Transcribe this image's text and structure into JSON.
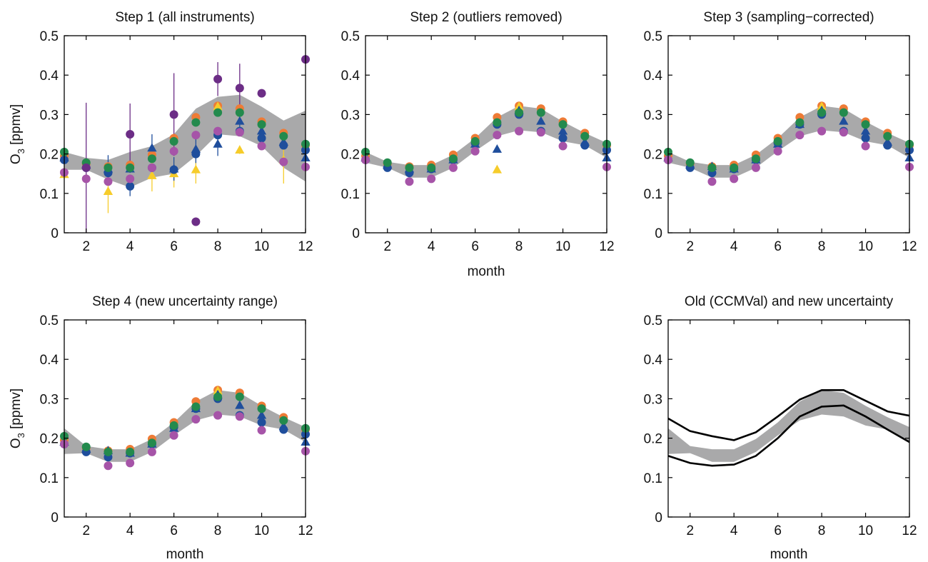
{
  "colors": {
    "band": "#a9a9aa",
    "orange": "#ee7b36",
    "yellow": "#f6cc2a",
    "green": "#238a4d",
    "blue": "#1f4e9c",
    "purple": "#6c2d86",
    "magenta": "#a654a8",
    "line": "#000000"
  },
  "chart_data": [
    {
      "id": "step1",
      "type": "scatter",
      "title": "Step 1 (all instruments)",
      "xlabel": "",
      "ylabel": "O3 [ppmv]",
      "xlim": [
        1,
        12
      ],
      "ylim": [
        0,
        0.5
      ],
      "xticks": [
        "2",
        "4",
        "6",
        "8",
        "10",
        "12"
      ],
      "yticks": [
        "0",
        "0.1",
        "0.2",
        "0.3",
        "0.4",
        "0.5"
      ],
      "band": {
        "x": [
          1,
          2,
          3,
          4,
          5,
          6,
          7,
          8,
          9,
          10,
          11,
          12
        ],
        "upper": [
          0.205,
          0.19,
          0.185,
          0.205,
          0.22,
          0.25,
          0.315,
          0.345,
          0.35,
          0.32,
          0.285,
          0.31
        ],
        "lower": [
          0.16,
          0.16,
          0.135,
          0.115,
          0.14,
          0.15,
          0.195,
          0.25,
          0.245,
          0.22,
          0.165,
          0.13
        ]
      },
      "series": [
        {
          "color": "orange",
          "marker": "circle",
          "x": [
            1,
            2,
            3,
            4,
            5,
            6,
            7,
            8,
            9,
            10,
            11,
            12
          ],
          "y": [
            0.195,
            0.175,
            0.168,
            0.172,
            0.198,
            0.24,
            0.293,
            0.322,
            0.315,
            0.282,
            0.253,
            0.222
          ]
        },
        {
          "color": "yellow",
          "marker": "triangle",
          "x": [
            1,
            3,
            5,
            6,
            7,
            8,
            9,
            11
          ],
          "y": [
            0.148,
            0.105,
            0.145,
            0.15,
            0.16,
            0.32,
            0.21,
            0.185
          ],
          "err": [
            0.01,
            0.055,
            0.04,
            0.035,
            0.035,
            0.01,
            0.01,
            0.06
          ]
        },
        {
          "color": "blue",
          "marker": "triangle",
          "x": [
            1,
            2,
            3,
            4,
            5,
            6,
            7,
            8,
            9,
            10,
            11,
            12
          ],
          "y": [
            0.19,
            0.172,
            0.162,
            0.162,
            0.215,
            0.162,
            0.212,
            0.225,
            0.283,
            0.258,
            0.23,
            0.19
          ],
          "err": [
            0.01,
            0.01,
            0.035,
            0.01,
            0.035,
            0.03,
            0.035,
            0.03,
            0.02,
            0.02,
            0.01,
            0.02
          ]
        },
        {
          "color": "blue",
          "marker": "circle",
          "x": [
            1,
            2,
            3,
            4,
            5,
            6,
            7,
            8,
            9,
            10,
            11,
            12
          ],
          "y": [
            0.185,
            0.165,
            0.152,
            0.118,
            0.165,
            0.16,
            0.2,
            0.248,
            0.258,
            0.24,
            0.222,
            0.21
          ],
          "err": [
            0,
            0,
            0,
            0.025,
            0,
            0,
            0,
            0,
            0,
            0,
            0,
            0
          ]
        },
        {
          "color": "green",
          "marker": "circle",
          "x": [
            1,
            2,
            3,
            4,
            5,
            6,
            7,
            8,
            9,
            10,
            11,
            12
          ],
          "y": [
            0.205,
            0.178,
            0.165,
            0.165,
            0.188,
            0.232,
            0.28,
            0.305,
            0.305,
            0.275,
            0.245,
            0.225
          ]
        },
        {
          "color": "magenta",
          "marker": "circle",
          "x": [
            1,
            2,
            3,
            4,
            5,
            6,
            7,
            8,
            9,
            10,
            11,
            12
          ],
          "y": [
            0.153,
            0.137,
            0.13,
            0.137,
            0.165,
            0.207,
            0.248,
            0.258,
            0.255,
            0.22,
            0.18,
            0.167
          ]
        },
        {
          "color": "purple",
          "marker": "circle",
          "x": [
            2,
            4,
            6,
            7,
            8,
            9,
            10,
            12
          ],
          "y": [
            0.165,
            0.25,
            0.3,
            0.028,
            0.39,
            0.367,
            0.354,
            0.44
          ],
          "err": [
            0.165,
            0.078,
            0.105,
            0,
            0.043,
            0.062,
            0,
            0
          ]
        }
      ]
    },
    {
      "id": "step2",
      "type": "scatter",
      "title": "Step 2 (outliers removed)",
      "xlabel": "month",
      "ylabel": "",
      "xlim": [
        1,
        12
      ],
      "ylim": [
        0,
        0.5
      ],
      "xticks": [
        "2",
        "4",
        "6",
        "8",
        "10",
        "12"
      ],
      "yticks": [
        "0",
        "0.1",
        "0.2",
        "0.3",
        "0.4",
        "0.5"
      ],
      "band": {
        "x": [
          1,
          2,
          3,
          4,
          5,
          6,
          7,
          8,
          9,
          10,
          11,
          12
        ],
        "upper": [
          0.205,
          0.18,
          0.172,
          0.172,
          0.198,
          0.24,
          0.293,
          0.322,
          0.315,
          0.282,
          0.253,
          0.228
        ],
        "lower": [
          0.178,
          0.165,
          0.14,
          0.14,
          0.165,
          0.207,
          0.245,
          0.26,
          0.255,
          0.232,
          0.222,
          0.19
        ]
      },
      "series": [
        {
          "color": "orange",
          "marker": "circle",
          "x": [
            1,
            2,
            3,
            4,
            5,
            6,
            7,
            8,
            9,
            10,
            11,
            12
          ],
          "y": [
            0.195,
            0.175,
            0.168,
            0.172,
            0.198,
            0.24,
            0.293,
            0.322,
            0.315,
            0.282,
            0.253,
            0.222
          ]
        },
        {
          "color": "yellow",
          "marker": "triangle",
          "x": [
            7,
            8
          ],
          "y": [
            0.16,
            0.32
          ]
        },
        {
          "color": "blue",
          "marker": "triangle",
          "x": [
            1,
            2,
            3,
            4,
            5,
            6,
            7,
            8,
            9,
            10,
            11,
            12
          ],
          "y": [
            0.19,
            0.172,
            0.162,
            0.162,
            0.185,
            0.225,
            0.212,
            0.31,
            0.283,
            0.258,
            0.23,
            0.19
          ]
        },
        {
          "color": "blue",
          "marker": "circle",
          "x": [
            1,
            2,
            3,
            4,
            5,
            6,
            7,
            8,
            9,
            10,
            11,
            12
          ],
          "y": [
            0.185,
            0.165,
            0.152,
            0.162,
            0.185,
            0.228,
            0.275,
            0.3,
            0.258,
            0.24,
            0.222,
            0.21
          ]
        },
        {
          "color": "green",
          "marker": "circle",
          "x": [
            1,
            2,
            3,
            4,
            5,
            6,
            7,
            8,
            9,
            10,
            11,
            12
          ],
          "y": [
            0.205,
            0.178,
            0.165,
            0.165,
            0.188,
            0.232,
            0.28,
            0.305,
            0.305,
            0.275,
            0.245,
            0.225
          ]
        },
        {
          "color": "magenta",
          "marker": "circle",
          "x": [
            1,
            3,
            4,
            5,
            6,
            7,
            8,
            9,
            10,
            12
          ],
          "y": [
            0.185,
            0.13,
            0.137,
            0.165,
            0.207,
            0.248,
            0.258,
            0.255,
            0.22,
            0.167
          ]
        }
      ]
    },
    {
      "id": "step3",
      "type": "scatter",
      "title": "Step 3 (sampling−corrected)",
      "xlabel": "",
      "ylabel": "",
      "xlim": [
        1,
        12
      ],
      "ylim": [
        0,
        0.5
      ],
      "xticks": [
        "2",
        "4",
        "6",
        "8",
        "10",
        "12"
      ],
      "yticks": [
        "0",
        "0.1",
        "0.2",
        "0.3",
        "0.4",
        "0.5"
      ],
      "band": {
        "x": [
          1,
          2,
          3,
          4,
          5,
          6,
          7,
          8,
          9,
          10,
          11,
          12
        ],
        "upper": [
          0.205,
          0.18,
          0.172,
          0.172,
          0.198,
          0.24,
          0.293,
          0.322,
          0.315,
          0.282,
          0.253,
          0.228
        ],
        "lower": [
          0.178,
          0.165,
          0.14,
          0.14,
          0.165,
          0.207,
          0.245,
          0.26,
          0.255,
          0.232,
          0.222,
          0.19
        ]
      },
      "series": [
        {
          "color": "orange",
          "marker": "circle",
          "x": [
            1,
            2,
            3,
            4,
            5,
            6,
            7,
            8,
            9,
            10,
            11,
            12
          ],
          "y": [
            0.195,
            0.175,
            0.168,
            0.172,
            0.198,
            0.24,
            0.293,
            0.322,
            0.315,
            0.282,
            0.253,
            0.222
          ]
        },
        {
          "color": "yellow",
          "marker": "triangle",
          "x": [
            8
          ],
          "y": [
            0.32
          ]
        },
        {
          "color": "blue",
          "marker": "triangle",
          "x": [
            1,
            2,
            3,
            4,
            5,
            6,
            7,
            8,
            9,
            10,
            11,
            12
          ],
          "y": [
            0.19,
            0.172,
            0.168,
            0.162,
            0.185,
            0.225,
            0.275,
            0.31,
            0.283,
            0.258,
            0.23,
            0.19
          ]
        },
        {
          "color": "blue",
          "marker": "circle",
          "x": [
            1,
            2,
            3,
            4,
            5,
            6,
            7,
            8,
            9,
            10,
            11,
            12
          ],
          "y": [
            0.185,
            0.165,
            0.152,
            0.162,
            0.185,
            0.228,
            0.275,
            0.3,
            0.258,
            0.24,
            0.222,
            0.21
          ]
        },
        {
          "color": "green",
          "marker": "circle",
          "x": [
            1,
            2,
            3,
            4,
            5,
            6,
            7,
            8,
            9,
            10,
            11,
            12
          ],
          "y": [
            0.205,
            0.178,
            0.165,
            0.165,
            0.188,
            0.232,
            0.28,
            0.305,
            0.305,
            0.275,
            0.245,
            0.225
          ]
        },
        {
          "color": "magenta",
          "marker": "circle",
          "x": [
            1,
            3,
            4,
            5,
            6,
            7,
            8,
            9,
            10,
            12
          ],
          "y": [
            0.185,
            0.13,
            0.137,
            0.165,
            0.207,
            0.248,
            0.258,
            0.255,
            0.22,
            0.167
          ]
        }
      ]
    },
    {
      "id": "step4",
      "type": "scatter",
      "title": "Step 4 (new uncertainty range)",
      "xlabel": "month",
      "ylabel": "O3 [ppmv]",
      "xlim": [
        1,
        12
      ],
      "ylim": [
        0,
        0.5
      ],
      "xticks": [
        "2",
        "4",
        "6",
        "8",
        "10",
        "12"
      ],
      "yticks": [
        "0",
        "0.1",
        "0.2",
        "0.3",
        "0.4",
        "0.5"
      ],
      "band": {
        "x": [
          1,
          2,
          3,
          4,
          5,
          6,
          7,
          8,
          9,
          10,
          11,
          12
        ],
        "upper": [
          0.225,
          0.18,
          0.172,
          0.172,
          0.198,
          0.24,
          0.293,
          0.322,
          0.315,
          0.282,
          0.253,
          0.228
        ],
        "lower": [
          0.16,
          0.162,
          0.14,
          0.14,
          0.165,
          0.207,
          0.245,
          0.26,
          0.255,
          0.232,
          0.222,
          0.19
        ]
      },
      "series": [
        {
          "color": "orange",
          "marker": "circle",
          "x": [
            1,
            2,
            3,
            4,
            5,
            6,
            7,
            8,
            9,
            10,
            11,
            12
          ],
          "y": [
            0.195,
            0.175,
            0.168,
            0.172,
            0.198,
            0.24,
            0.293,
            0.322,
            0.315,
            0.282,
            0.253,
            0.222
          ]
        },
        {
          "color": "yellow",
          "marker": "triangle",
          "x": [
            8
          ],
          "y": [
            0.32
          ]
        },
        {
          "color": "blue",
          "marker": "triangle",
          "x": [
            1,
            2,
            3,
            4,
            5,
            6,
            7,
            8,
            9,
            10,
            11,
            12
          ],
          "y": [
            0.19,
            0.172,
            0.168,
            0.162,
            0.185,
            0.225,
            0.275,
            0.31,
            0.283,
            0.258,
            0.23,
            0.19
          ]
        },
        {
          "color": "blue",
          "marker": "circle",
          "x": [
            1,
            2,
            3,
            4,
            5,
            6,
            7,
            8,
            9,
            10,
            11,
            12
          ],
          "y": [
            0.185,
            0.165,
            0.152,
            0.162,
            0.185,
            0.228,
            0.275,
            0.3,
            0.258,
            0.24,
            0.222,
            0.21
          ]
        },
        {
          "color": "green",
          "marker": "circle",
          "x": [
            1,
            2,
            3,
            4,
            5,
            6,
            7,
            8,
            9,
            10,
            11,
            12
          ],
          "y": [
            0.205,
            0.178,
            0.165,
            0.165,
            0.188,
            0.232,
            0.28,
            0.305,
            0.305,
            0.275,
            0.245,
            0.225
          ]
        },
        {
          "color": "magenta",
          "marker": "circle",
          "x": [
            1,
            3,
            4,
            5,
            6,
            7,
            8,
            9,
            10,
            12
          ],
          "y": [
            0.185,
            0.13,
            0.137,
            0.165,
            0.207,
            0.248,
            0.258,
            0.255,
            0.22,
            0.167
          ]
        }
      ]
    },
    {
      "id": "compare",
      "type": "line",
      "title": "Old (CCMVal) and new uncertainty",
      "xlabel": "month",
      "ylabel": "",
      "xlim": [
        1,
        12
      ],
      "ylim": [
        0,
        0.5
      ],
      "xticks": [
        "2",
        "4",
        "6",
        "8",
        "10",
        "12"
      ],
      "yticks": [
        "0",
        "0.1",
        "0.2",
        "0.3",
        "0.4",
        "0.5"
      ],
      "band": {
        "x": [
          1,
          2,
          3,
          4,
          5,
          6,
          7,
          8,
          9,
          10,
          11,
          12
        ],
        "upper": [
          0.225,
          0.18,
          0.172,
          0.172,
          0.198,
          0.24,
          0.293,
          0.322,
          0.315,
          0.282,
          0.253,
          0.228
        ],
        "lower": [
          0.16,
          0.162,
          0.14,
          0.14,
          0.165,
          0.207,
          0.245,
          0.26,
          0.255,
          0.232,
          0.222,
          0.19
        ]
      },
      "series": [
        {
          "color": "line",
          "x": [
            1,
            2,
            3,
            4,
            5,
            6,
            7,
            8,
            9,
            10,
            11,
            12
          ],
          "y": [
            0.25,
            0.218,
            0.205,
            0.195,
            0.215,
            0.255,
            0.298,
            0.322,
            0.322,
            0.295,
            0.268,
            0.257
          ]
        },
        {
          "color": "line",
          "x": [
            1,
            2,
            3,
            4,
            5,
            6,
            7,
            8,
            9,
            10,
            11,
            12
          ],
          "y": [
            0.155,
            0.137,
            0.13,
            0.133,
            0.155,
            0.2,
            0.255,
            0.28,
            0.283,
            0.255,
            0.222,
            0.19
          ]
        }
      ]
    }
  ]
}
